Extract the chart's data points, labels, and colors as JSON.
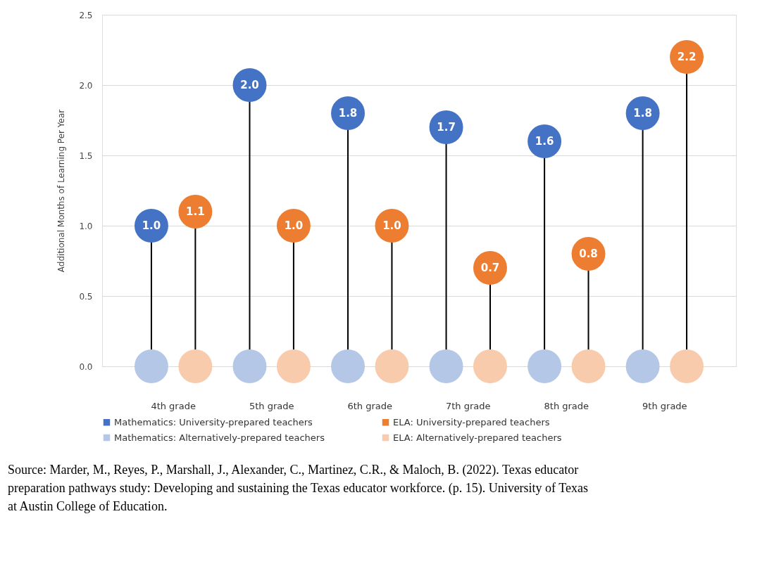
{
  "chart_data": {
    "type": "lollipop",
    "ylabel": "Additional Months of Learning Per Year",
    "categories": [
      "4th grade",
      "5th grade",
      "6th grade",
      "7th grade",
      "8th grade",
      "9th grade"
    ],
    "series": [
      {
        "name": "Mathematics: University-prepared teachers",
        "color": "#4472c4",
        "values": [
          1.0,
          2.0,
          1.8,
          1.7,
          1.6,
          1.8
        ],
        "value_labels": [
          "1.0",
          "2.0",
          "1.8",
          "1.7",
          "1.6",
          "1.8"
        ]
      },
      {
        "name": "ELA: University-prepared teachers",
        "color": "#ed7d31",
        "values": [
          1.1,
          1.0,
          1.0,
          0.7,
          0.8,
          2.2
        ],
        "value_labels": [
          "1.1",
          "1.0",
          "1.0",
          "0.7",
          "0.8",
          "2.2"
        ]
      },
      {
        "name": "Mathematics: Alternatively-prepared teachers",
        "color": "#b4c7e7",
        "values": [
          0,
          0,
          0,
          0,
          0,
          0
        ]
      },
      {
        "name": "ELA: Alternatively-prepared teachers",
        "color": "#f8cbad",
        "values": [
          0,
          0,
          0,
          0,
          0,
          0
        ]
      }
    ],
    "ylim": [
      0,
      2.5
    ],
    "yticks": [
      {
        "value": 0,
        "label": "0.0"
      },
      0.5,
      {
        "value": 1,
        "label": "1.0"
      },
      1.5,
      {
        "value": 2,
        "label": "2.0"
      },
      2.5
    ],
    "grid": "y",
    "legend": "bottom",
    "annotations": [
      "Source: Marder, M., Reyes, P., Marshall, J., Alexander, C., Martinez, C.R., & Maloch, B. (2022). Texas educator preparation pathways study: Developing and sustaining the Texas educator workforce. (p. 15). University of Texas at Austin College of Education."
    ]
  }
}
